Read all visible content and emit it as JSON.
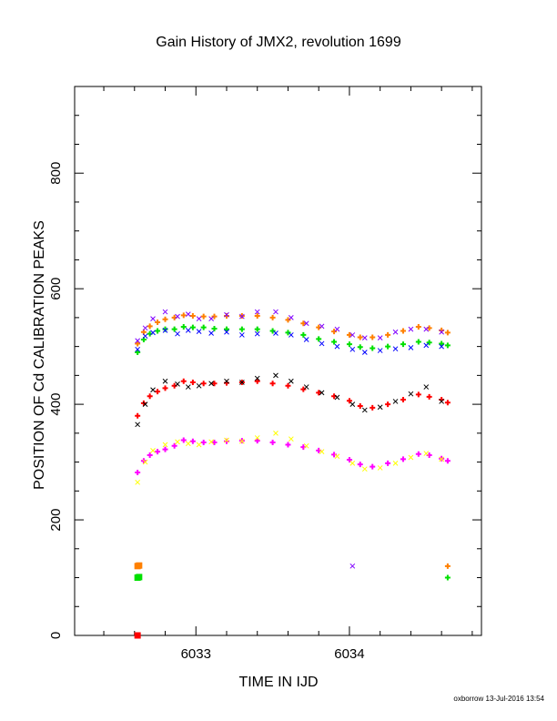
{
  "chart_data": {
    "type": "scatter",
    "title": "Gain History of JMX2, revolution 1699",
    "xlabel": "TIME IN IJD",
    "ylabel": "POSITION OF Cd CALIBRATION PEAKS",
    "xlim": [
      6032.21,
      6034.86
    ],
    "ylim": [
      0,
      950
    ],
    "x_ticks": [
      6033,
      6034
    ],
    "y_ticks": [
      0,
      200,
      400,
      600,
      800
    ],
    "grid": false,
    "footer": "oxborrow 13-Jul-2016 13:54",
    "series": [
      {
        "color": "#ff8000",
        "marker": "plus",
        "x": [
          6032.62,
          6032.66,
          6032.7,
          6032.75,
          6032.8,
          6032.86,
          6032.92,
          6032.98,
          6033.05,
          6033.12,
          6033.2,
          6033.3,
          6033.4,
          6033.5,
          6033.6,
          6033.7,
          6033.8,
          6033.9,
          6034.0,
          6034.07,
          6034.15,
          6034.25,
          6034.35,
          6034.45,
          6034.52,
          6034.6,
          6034.64
        ],
        "y": [
          505,
          525,
          535,
          542,
          547,
          550,
          554,
          553,
          552,
          552,
          553,
          553,
          553,
          550,
          546,
          540,
          533,
          526,
          520,
          516,
          516,
          520,
          527,
          534,
          532,
          528,
          524
        ]
      },
      {
        "color": "#00e000",
        "marker": "plus",
        "x": [
          6032.62,
          6032.66,
          6032.7,
          6032.75,
          6032.8,
          6032.86,
          6032.92,
          6032.98,
          6033.05,
          6033.12,
          6033.2,
          6033.3,
          6033.4,
          6033.5,
          6033.6,
          6033.7,
          6033.8,
          6033.9,
          6034.0,
          6034.07,
          6034.15,
          6034.25,
          6034.35,
          6034.45,
          6034.52,
          6034.6,
          6034.64
        ],
        "y": [
          490,
          512,
          522,
          527,
          530,
          530,
          534,
          533,
          533,
          531,
          530,
          530,
          530,
          527,
          524,
          520,
          513,
          508,
          504,
          499,
          497,
          500,
          504,
          508,
          507,
          505,
          502
        ]
      },
      {
        "color": "#8000ff",
        "marker": "cross",
        "x": [
          6032.62,
          6032.67,
          6032.72,
          6032.8,
          6032.88,
          6032.95,
          6033.02,
          6033.1,
          6033.2,
          6033.3,
          6033.4,
          6033.52,
          6033.62,
          6033.72,
          6033.82,
          6033.92,
          6034.02,
          6034.1,
          6034.2,
          6034.3,
          6034.4,
          6034.5,
          6034.6
        ],
        "y": [
          510,
          532,
          548,
          560,
          552,
          556,
          548,
          548,
          555,
          552,
          560,
          560,
          550,
          540,
          535,
          530,
          520,
          515,
          515,
          525,
          530,
          530,
          525
        ]
      },
      {
        "color": "#0000ff",
        "marker": "cross",
        "x": [
          6032.62,
          6032.67,
          6032.72,
          6032.8,
          6032.88,
          6032.95,
          6033.02,
          6033.1,
          6033.2,
          6033.3,
          6033.4,
          6033.52,
          6033.62,
          6033.72,
          6033.82,
          6033.92,
          6034.02,
          6034.1,
          6034.2,
          6034.3,
          6034.4,
          6034.5,
          6034.6
        ],
        "y": [
          495,
          518,
          524,
          528,
          522,
          528,
          526,
          523,
          525,
          520,
          522,
          523,
          520,
          512,
          505,
          500,
          495,
          490,
          493,
          496,
          498,
          502,
          500
        ]
      },
      {
        "color": "#ff0000",
        "marker": "plus",
        "x": [
          6032.62,
          6032.66,
          6032.7,
          6032.75,
          6032.8,
          6032.86,
          6032.92,
          6032.98,
          6033.05,
          6033.12,
          6033.2,
          6033.3,
          6033.4,
          6033.5,
          6033.6,
          6033.7,
          6033.8,
          6033.9,
          6034.0,
          6034.07,
          6034.15,
          6034.25,
          6034.35,
          6034.45,
          6034.52,
          6034.6,
          6034.64
        ],
        "y": [
          380,
          402,
          414,
          422,
          428,
          432,
          440,
          438,
          436,
          436,
          437,
          438,
          440,
          436,
          432,
          426,
          420,
          414,
          406,
          397,
          394,
          400,
          408,
          417,
          413,
          408,
          403
        ]
      },
      {
        "color": "#000000",
        "marker": "cross",
        "x": [
          6032.62,
          6032.67,
          6032.72,
          6032.8,
          6032.88,
          6032.95,
          6033.02,
          6033.1,
          6033.2,
          6033.3,
          6033.4,
          6033.52,
          6033.62,
          6033.72,
          6033.82,
          6033.92,
          6034.02,
          6034.1,
          6034.2,
          6034.3,
          6034.4,
          6034.5,
          6034.6
        ],
        "y": [
          365,
          400,
          425,
          440,
          435,
          430,
          432,
          436,
          440,
          438,
          445,
          450,
          440,
          430,
          420,
          412,
          400,
          390,
          395,
          405,
          418,
          430,
          405
        ]
      },
      {
        "color": "#ff00ff",
        "marker": "plus",
        "x": [
          6032.62,
          6032.66,
          6032.7,
          6032.75,
          6032.8,
          6032.86,
          6032.92,
          6032.98,
          6033.05,
          6033.12,
          6033.2,
          6033.3,
          6033.4,
          6033.5,
          6033.6,
          6033.7,
          6033.8,
          6033.9,
          6034.0,
          6034.07,
          6034.15,
          6034.25,
          6034.35,
          6034.45,
          6034.52,
          6034.6,
          6034.64
        ],
        "y": [
          282,
          302,
          312,
          318,
          322,
          328,
          338,
          336,
          334,
          334,
          336,
          337,
          337,
          334,
          330,
          326,
          320,
          313,
          304,
          296,
          292,
          298,
          305,
          314,
          312,
          306,
          302
        ]
      },
      {
        "color": "#ffff00",
        "marker": "cross",
        "x": [
          6032.62,
          6032.67,
          6032.72,
          6032.8,
          6032.88,
          6032.95,
          6033.02,
          6033.1,
          6033.2,
          6033.3,
          6033.4,
          6033.52,
          6033.62,
          6033.72,
          6033.82,
          6033.92,
          6034.02,
          6034.1,
          6034.2,
          6034.3,
          6034.4,
          6034.5,
          6034.6
        ],
        "y": [
          265,
          300,
          320,
          330,
          335,
          332,
          330,
          335,
          338,
          336,
          342,
          350,
          340,
          328,
          318,
          310,
          298,
          288,
          290,
          298,
          308,
          315,
          305
        ]
      },
      {
        "color": "#ff8000",
        "marker": "box",
        "x": [
          6032.62,
          6032.63
        ],
        "y": [
          120,
          121
        ]
      },
      {
        "color": "#00e000",
        "marker": "box",
        "x": [
          6032.62,
          6032.63
        ],
        "y": [
          100,
          101
        ]
      },
      {
        "color": "#ff0000",
        "marker": "box",
        "x": [
          6032.62
        ],
        "y": [
          0
        ]
      },
      {
        "color": "#ff8000",
        "marker": "plus",
        "x": [
          6034.64
        ],
        "y": [
          120
        ]
      },
      {
        "color": "#00e000",
        "marker": "plus",
        "x": [
          6034.64
        ],
        "y": [
          100
        ]
      },
      {
        "color": "#8000ff",
        "marker": "cross",
        "x": [
          6034.02
        ],
        "y": [
          120
        ]
      }
    ]
  }
}
